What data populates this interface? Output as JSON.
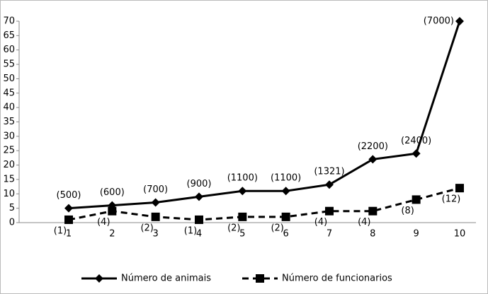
{
  "chart_data": {
    "type": "line",
    "categories": [
      "1",
      "2",
      "3",
      "4",
      "5",
      "6",
      "7",
      "8",
      "9",
      "10"
    ],
    "series": [
      {
        "name": "Número de animais",
        "color": "#000000",
        "dash": false,
        "marker": "diamond",
        "values": [
          5,
          6,
          7,
          9,
          11,
          11,
          13.21,
          22,
          24,
          70
        ],
        "value_labels": [
          "(500)",
          "(600)",
          "(700)",
          "(900)",
          "(1100)",
          "(1100)",
          "(1321)",
          "(2200)",
          "(2400)",
          "(7000)"
        ]
      },
      {
        "name": "Número de funcionarios",
        "color": "#000000",
        "dash": true,
        "marker": "square",
        "values": [
          1,
          4,
          2,
          1,
          2,
          2,
          4,
          4,
          8,
          12
        ],
        "value_labels": [
          "(1)",
          "(4)",
          "(2)",
          "(1)",
          "(2)",
          "(2)",
          "(4)",
          "(4)",
          "(8)",
          "(12)"
        ]
      }
    ],
    "ylim": [
      0,
      70
    ],
    "yticks": [
      0,
      5,
      10,
      15,
      20,
      25,
      30,
      35,
      40,
      45,
      50,
      55,
      60,
      65,
      70
    ],
    "grid": false,
    "legend": "bottom"
  }
}
